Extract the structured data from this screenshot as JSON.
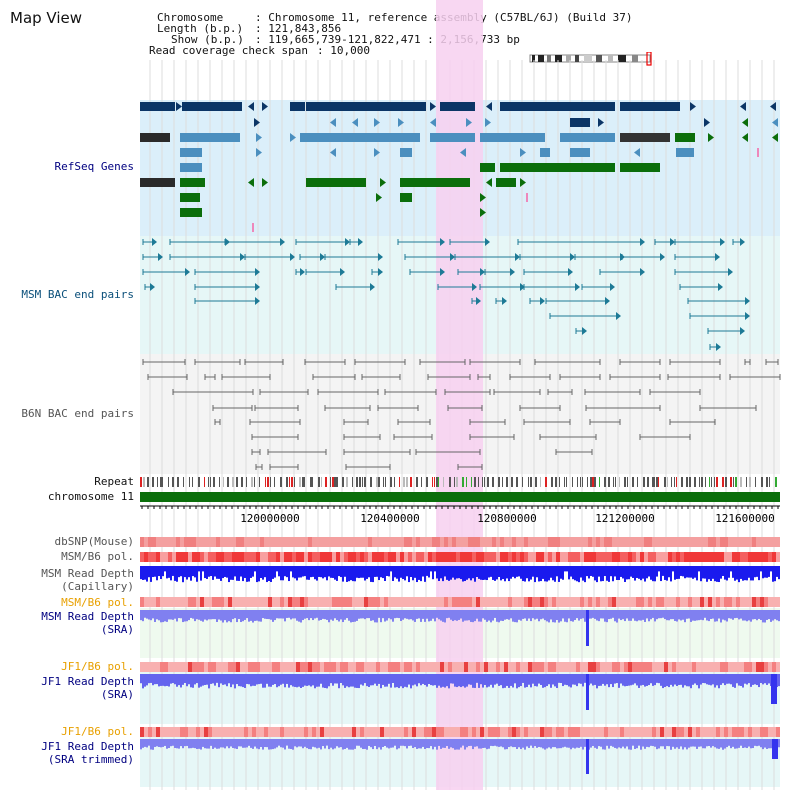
{
  "page_title": "Map View",
  "info": {
    "chromosome_key": "Chromosome",
    "chromosome_value": ": Chromosome 11, reference assembly (C57BL/6J) (Build 37)",
    "length_key": "Length (b.p.)",
    "length_value": ": 121,843,856",
    "show_key": "Show (b.p.)",
    "show_value": ": 119,665,739-121,822,471 : 2,156,733 bp",
    "coverage_key": "Read coverage check span",
    "coverage_value": ": 10,000"
  },
  "tracks": {
    "refseq": "RefSeq Genes",
    "msm_bac": "MSM BAC end pairs",
    "b6n_bac": "B6N BAC end pairs",
    "repeat": "Repeat",
    "chromosome": "chromosome 11",
    "dbsnp": "dbSNP(Mouse)",
    "msm_b6_pol": "MSM/B6 pol.",
    "msm_depth_cap_1": "MSM Read Depth",
    "msm_depth_cap_2": "(Capillary)",
    "msm_b6_pol_2": "MSM/B6 pol.",
    "msm_depth_sra_1": "MSM Read Depth",
    "msm_depth_sra_2": "(SRA)",
    "jf1_b6_pol": "JF1/B6 pol.",
    "jf1_depth_sra_1": "JF1 Read Depth",
    "jf1_depth_sra_2": "(SRA)",
    "jf1_b6_pol_2": "JF1/B6 pol.",
    "jf1_depth_trim_1": "JF1 Read Depth",
    "jf1_depth_trim_2": "(SRA trimmed)"
  },
  "axis": {
    "ticks": [
      "120000000",
      "120400000",
      "120800000",
      "121200000",
      "121600000"
    ]
  },
  "colors": {
    "highlight": "#f7d0f0",
    "refseq_bg": "#dbeffa",
    "msm_bg": "#e6f7f7",
    "b6n_bg": "#f4f4f4",
    "dark_navy": "#0b3566",
    "mid_blue": "#4b8fbf",
    "dark_green": "#0b6e0b",
    "teal": "#1d7a96",
    "gray": "#666666",
    "chromosome_green": "#0b6e0b",
    "pol_red": "#f04040",
    "depth_blue": "#1a1aee",
    "sra_blue": "#8080f0",
    "orange_label": "#e8a000",
    "navy_label": "#000080"
  }
}
